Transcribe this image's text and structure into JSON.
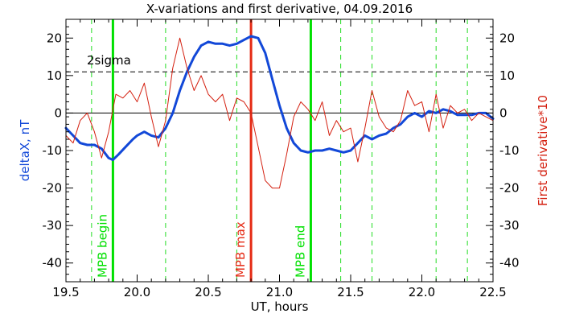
{
  "chart_data": {
    "type": "line",
    "title": "X-variations and first derivative, 04.09.2016",
    "xlabel": "UT, hours",
    "ylabel_left": "deltaX, nT",
    "ylabel_right": "First derivative*10",
    "xlim": [
      19.5,
      22.5
    ],
    "ylim": [
      -45,
      25
    ],
    "x_ticks": [
      "19.5",
      "20.0",
      "20.5",
      "21.0",
      "21.5",
      "22.0",
      "22.5"
    ],
    "x_tick_values": [
      19.5,
      20.0,
      20.5,
      21.0,
      21.5,
      22.0,
      22.5
    ],
    "y_ticks": [
      -40,
      -30,
      -20,
      -10,
      0,
      10,
      20
    ],
    "y_tick_labels": [
      "-40",
      "-30",
      "-20",
      "-10",
      "0",
      "10",
      "20"
    ],
    "zero_line": 0,
    "threshold": {
      "value": 11,
      "label": "2sigma"
    },
    "dashed_vlines": [
      19.68,
      20.2,
      20.7,
      21.43,
      21.65,
      22.1,
      22.32
    ],
    "markers": [
      {
        "x": 19.83,
        "label": "MPB begin",
        "color": "#00e000"
      },
      {
        "x": 20.8,
        "label": "MPB max",
        "color": "#e52a14"
      },
      {
        "x": 21.22,
        "label": "MPB end",
        "color": "#00e000"
      }
    ],
    "series": [
      {
        "color": "#1248d8",
        "x": [
          19.5,
          19.55,
          19.6,
          19.65,
          19.7,
          19.75,
          19.8,
          19.83,
          19.87,
          19.92,
          19.97,
          20.0,
          20.05,
          20.1,
          20.15,
          20.2,
          20.25,
          20.3,
          20.35,
          20.4,
          20.45,
          20.5,
          20.55,
          20.6,
          20.65,
          20.7,
          20.75,
          20.8,
          20.85,
          20.9,
          20.95,
          21.0,
          21.05,
          21.1,
          21.15,
          21.2,
          21.25,
          21.3,
          21.35,
          21.4,
          21.45,
          21.5,
          21.55,
          21.6,
          21.65,
          21.7,
          21.75,
          21.8,
          21.85,
          21.9,
          21.95,
          22.0,
          22.05,
          22.1,
          22.15,
          22.2,
          22.25,
          22.3,
          22.35,
          22.4,
          22.45,
          22.5
        ],
        "values": [
          -4,
          -6,
          -8,
          -8.5,
          -8.5,
          -9.5,
          -12,
          -12.5,
          -11,
          -9,
          -7,
          -6,
          -5,
          -6,
          -6.5,
          -4,
          0,
          6,
          11,
          15,
          18,
          19,
          18.5,
          18.5,
          18,
          18.5,
          19.5,
          20.5,
          20,
          16,
          9,
          2,
          -4,
          -8,
          -10,
          -10.5,
          -10,
          -10,
          -9.5,
          -10,
          -10.5,
          -10,
          -8,
          -6,
          -7,
          -6,
          -5.5,
          -4,
          -3,
          -1,
          0,
          -1,
          0.5,
          0,
          1,
          0.5,
          -0.5,
          -0.5,
          -0.5,
          0,
          0,
          -1.5
        ]
      },
      {
        "color": "#d42010",
        "x": [
          19.5,
          19.55,
          19.6,
          19.65,
          19.7,
          19.75,
          19.8,
          19.85,
          19.9,
          19.95,
          20.0,
          20.05,
          20.1,
          20.15,
          20.2,
          20.25,
          20.3,
          20.35,
          20.4,
          20.45,
          20.5,
          20.55,
          20.6,
          20.65,
          20.7,
          20.75,
          20.8,
          20.85,
          20.9,
          20.95,
          21.0,
          21.05,
          21.1,
          21.15,
          21.2,
          21.25,
          21.3,
          21.35,
          21.4,
          21.45,
          21.5,
          21.55,
          21.6,
          21.65,
          21.7,
          21.75,
          21.8,
          21.85,
          21.9,
          21.95,
          22.0,
          22.05,
          22.1,
          22.15,
          22.2,
          22.25,
          22.3,
          22.35,
          22.4,
          22.45,
          22.5
        ],
        "values": [
          -6,
          -8,
          -2,
          0,
          -5,
          -12,
          -5,
          5,
          4,
          6,
          3,
          8,
          -1,
          -9,
          -2,
          12,
          20,
          12,
          6,
          10,
          5,
          3,
          5,
          -2,
          4,
          3,
          0,
          -9,
          -18,
          -20,
          -20,
          -11,
          -1,
          3,
          1,
          -2,
          3,
          -6,
          -2,
          -5,
          -4,
          -13,
          -4,
          6,
          -1,
          -4,
          -5,
          -2,
          6,
          2,
          3,
          -5,
          5,
          -4,
          2,
          0,
          1,
          -2,
          0,
          -1,
          -2
        ]
      }
    ]
  }
}
